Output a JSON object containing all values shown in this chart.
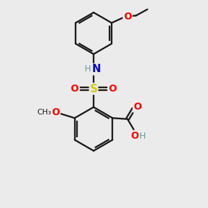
{
  "background_color": "#ebebeb",
  "bond_color": "#1a1a1a",
  "atom_colors": {
    "O": "#ff0000",
    "N": "#0000cc",
    "S": "#cccc00",
    "H_N": "#5f9ea0",
    "H_O": "#5f9ea0",
    "C": "#1a1a1a"
  },
  "figsize": [
    3.0,
    3.0
  ],
  "dpi": 100,
  "xlim": [
    0,
    10
  ],
  "ylim": [
    0,
    10
  ]
}
